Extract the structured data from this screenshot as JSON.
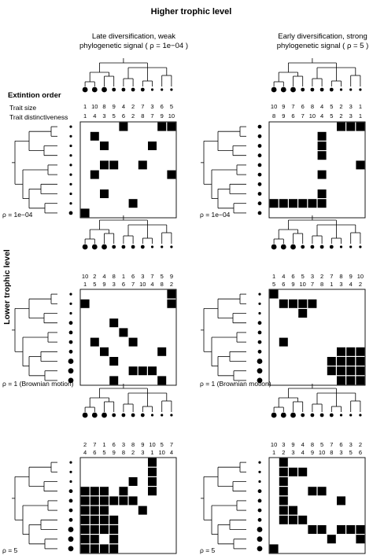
{
  "title": "Higher trophic level",
  "y_title": "Lower trophic level",
  "extinction_label": "Extintion order",
  "trait_size_label": "Trait size",
  "trait_distinct_label": "Trait distinctiveness",
  "columns": [
    {
      "line1": "Late diversification, weak",
      "line2": "phylogenetic signal ( ρ = 1e−04 )"
    },
    {
      "line1": "Early diversification, strong",
      "line2": "phylogenetic signal ( ρ = 5 )"
    }
  ],
  "rows": [
    {
      "rho_left": "ρ = 1e−04",
      "rho_right": "ρ = 1e−04"
    },
    {
      "rho_left": "ρ = 1 (Brownian motion)",
      "rho_right": "ρ = 1 (Brownian motion)"
    },
    {
      "rho_left": "ρ = 5",
      "rho_right": "ρ = 5"
    }
  ],
  "panels": [
    {
      "id": "r1c1",
      "size_row": [
        "1",
        "10",
        "8",
        "9",
        "4",
        "2",
        "7",
        "3",
        "6",
        "5"
      ],
      "dist_row": [
        "1",
        "4",
        "3",
        "5",
        "6",
        "2",
        "8",
        "7",
        "9",
        "10"
      ],
      "top_dots": [
        3,
        3,
        3,
        2,
        2,
        2,
        2,
        1,
        1,
        1
      ],
      "left_dots": [
        1,
        1,
        1,
        1,
        1,
        1,
        1,
        1,
        1,
        2
      ],
      "matrix": [
        [
          0,
          0,
          0,
          0,
          1,
          0,
          0,
          0,
          1,
          1
        ],
        [
          0,
          1,
          0,
          0,
          0,
          0,
          0,
          0,
          0,
          0
        ],
        [
          0,
          0,
          1,
          0,
          0,
          0,
          0,
          1,
          0,
          0
        ],
        [
          0,
          0,
          0,
          0,
          0,
          0,
          0,
          0,
          0,
          0
        ],
        [
          0,
          0,
          1,
          1,
          0,
          0,
          1,
          0,
          0,
          0
        ],
        [
          0,
          1,
          0,
          0,
          0,
          0,
          0,
          0,
          0,
          1
        ],
        [
          0,
          0,
          0,
          0,
          0,
          0,
          0,
          0,
          0,
          0
        ],
        [
          0,
          0,
          1,
          0,
          0,
          0,
          0,
          0,
          0,
          0
        ],
        [
          0,
          0,
          0,
          0,
          0,
          1,
          0,
          0,
          0,
          0
        ],
        [
          1,
          0,
          0,
          0,
          0,
          0,
          0,
          0,
          0,
          0
        ]
      ]
    },
    {
      "id": "r1c2",
      "size_row": [
        "10",
        "9",
        "7",
        "6",
        "8",
        "4",
        "5",
        "2",
        "3",
        "1"
      ],
      "dist_row": [
        "8",
        "9",
        "6",
        "7",
        "10",
        "4",
        "5",
        "2",
        "3",
        "1"
      ],
      "top_dots": [
        3,
        3,
        3,
        2,
        2,
        2,
        2,
        1,
        1,
        1
      ],
      "left_dots": [
        2,
        2,
        2,
        2,
        2,
        2,
        2,
        2,
        2,
        2
      ],
      "matrix": [
        [
          0,
          0,
          0,
          0,
          0,
          0,
          0,
          1,
          1,
          1
        ],
        [
          0,
          0,
          0,
          0,
          0,
          1,
          0,
          0,
          0,
          0
        ],
        [
          0,
          0,
          0,
          0,
          0,
          1,
          0,
          0,
          0,
          0
        ],
        [
          0,
          0,
          0,
          0,
          0,
          1,
          0,
          0,
          0,
          0
        ],
        [
          0,
          0,
          0,
          0,
          0,
          0,
          0,
          0,
          0,
          1
        ],
        [
          0,
          0,
          0,
          0,
          0,
          1,
          0,
          0,
          0,
          0
        ],
        [
          0,
          0,
          0,
          0,
          0,
          0,
          0,
          0,
          0,
          0
        ],
        [
          0,
          0,
          0,
          0,
          0,
          1,
          0,
          0,
          0,
          0
        ],
        [
          1,
          1,
          1,
          1,
          1,
          1,
          0,
          0,
          0,
          0
        ],
        [
          0,
          0,
          0,
          0,
          0,
          0,
          0,
          0,
          0,
          0
        ]
      ]
    },
    {
      "id": "r2c1",
      "size_row": [
        "10",
        "2",
        "4",
        "8",
        "1",
        "6",
        "3",
        "7",
        "5",
        "9"
      ],
      "dist_row": [
        "1",
        "5",
        "9",
        "3",
        "6",
        "7",
        "10",
        "4",
        "8",
        "2"
      ],
      "top_dots": [
        3,
        3,
        3,
        2,
        2,
        2,
        2,
        1,
        1,
        1
      ],
      "left_dots": [
        1,
        1,
        1,
        2,
        2,
        2,
        2,
        3,
        3,
        3
      ],
      "matrix": [
        [
          0,
          0,
          0,
          0,
          0,
          0,
          0,
          0,
          0,
          1
        ],
        [
          1,
          0,
          0,
          0,
          0,
          0,
          0,
          0,
          0,
          1
        ],
        [
          0,
          0,
          0,
          0,
          0,
          0,
          0,
          0,
          0,
          0
        ],
        [
          0,
          0,
          0,
          1,
          0,
          0,
          0,
          0,
          0,
          0
        ],
        [
          0,
          0,
          0,
          0,
          1,
          0,
          0,
          0,
          0,
          0
        ],
        [
          0,
          1,
          0,
          0,
          0,
          1,
          0,
          0,
          0,
          0
        ],
        [
          0,
          0,
          1,
          0,
          0,
          0,
          0,
          0,
          1,
          0
        ],
        [
          0,
          0,
          0,
          1,
          0,
          0,
          0,
          0,
          0,
          0
        ],
        [
          0,
          0,
          0,
          0,
          0,
          1,
          1,
          1,
          0,
          0
        ],
        [
          0,
          0,
          0,
          1,
          0,
          0,
          0,
          0,
          1,
          0
        ]
      ]
    },
    {
      "id": "r2c2",
      "size_row": [
        "1",
        "4",
        "6",
        "5",
        "3",
        "2",
        "7",
        "8",
        "9",
        "10"
      ],
      "dist_row": [
        "5",
        "6",
        "9",
        "10",
        "7",
        "8",
        "1",
        "3",
        "4",
        "2"
      ],
      "top_dots": [
        3,
        3,
        3,
        2,
        2,
        2,
        2,
        1,
        1,
        1
      ],
      "left_dots": [
        1,
        1,
        1,
        2,
        2,
        2,
        2,
        3,
        3,
        3
      ],
      "matrix": [
        [
          1,
          0,
          0,
          0,
          0,
          0,
          0,
          0,
          0,
          0
        ],
        [
          0,
          1,
          1,
          1,
          1,
          0,
          0,
          0,
          0,
          0
        ],
        [
          0,
          0,
          0,
          1,
          0,
          0,
          0,
          0,
          0,
          0
        ],
        [
          0,
          0,
          0,
          0,
          0,
          0,
          0,
          0,
          0,
          0
        ],
        [
          0,
          0,
          0,
          0,
          0,
          0,
          0,
          0,
          0,
          0
        ],
        [
          0,
          1,
          0,
          0,
          0,
          0,
          0,
          0,
          0,
          0
        ],
        [
          0,
          0,
          0,
          0,
          0,
          0,
          0,
          1,
          1,
          1
        ],
        [
          0,
          0,
          0,
          0,
          0,
          0,
          1,
          1,
          1,
          1
        ],
        [
          0,
          0,
          0,
          0,
          0,
          0,
          1,
          1,
          1,
          1
        ],
        [
          0,
          0,
          0,
          0,
          0,
          0,
          0,
          1,
          1,
          1
        ]
      ]
    },
    {
      "id": "r3c1",
      "size_row": [
        "2",
        "7",
        "1",
        "6",
        "3",
        "8",
        "9",
        "10",
        "5",
        "7"
      ],
      "dist_row": [
        "4",
        "6",
        "5",
        "9",
        "8",
        "2",
        "3",
        "1",
        "10",
        "4"
      ],
      "top_dots": [
        3,
        3,
        3,
        2,
        2,
        2,
        2,
        1,
        1,
        1
      ],
      "left_dots": [
        1,
        1,
        1,
        2,
        2,
        2,
        2,
        3,
        3,
        3
      ],
      "matrix": [
        [
          0,
          0,
          0,
          0,
          0,
          0,
          0,
          1,
          0,
          0
        ],
        [
          0,
          0,
          0,
          0,
          0,
          0,
          0,
          1,
          0,
          0
        ],
        [
          0,
          0,
          0,
          0,
          0,
          1,
          0,
          1,
          0,
          0
        ],
        [
          1,
          1,
          1,
          0,
          1,
          0,
          0,
          1,
          0,
          0
        ],
        [
          1,
          1,
          1,
          1,
          1,
          1,
          0,
          0,
          0,
          0
        ],
        [
          1,
          1,
          1,
          0,
          0,
          0,
          1,
          0,
          0,
          0
        ],
        [
          1,
          1,
          1,
          1,
          0,
          0,
          0,
          0,
          0,
          0
        ],
        [
          1,
          1,
          1,
          1,
          0,
          0,
          0,
          0,
          0,
          0
        ],
        [
          1,
          1,
          0,
          1,
          0,
          0,
          0,
          0,
          0,
          0
        ],
        [
          1,
          1,
          1,
          1,
          0,
          0,
          0,
          0,
          0,
          0
        ]
      ]
    },
    {
      "id": "r3c2",
      "size_row": [
        "10",
        "3",
        "9",
        "4",
        "8",
        "5",
        "7",
        "6",
        "3",
        "2"
      ],
      "dist_row": [
        "1",
        "2",
        "3",
        "4",
        "9",
        "10",
        "8",
        "3",
        "5",
        "6"
      ],
      "top_dots": [
        3,
        3,
        3,
        2,
        2,
        2,
        2,
        1,
        1,
        1
      ],
      "left_dots": [
        1,
        1,
        1,
        2,
        2,
        2,
        2,
        3,
        3,
        3
      ],
      "matrix": [
        [
          0,
          1,
          0,
          0,
          0,
          0,
          0,
          0,
          0,
          0
        ],
        [
          0,
          1,
          1,
          1,
          0,
          0,
          0,
          0,
          0,
          0
        ],
        [
          0,
          1,
          0,
          0,
          0,
          0,
          0,
          0,
          0,
          0
        ],
        [
          0,
          1,
          0,
          0,
          1,
          1,
          0,
          0,
          0,
          0
        ],
        [
          0,
          1,
          0,
          0,
          0,
          0,
          0,
          1,
          0,
          0
        ],
        [
          0,
          1,
          1,
          0,
          0,
          0,
          0,
          0,
          0,
          0
        ],
        [
          0,
          1,
          1,
          1,
          0,
          0,
          0,
          0,
          0,
          0
        ],
        [
          0,
          0,
          0,
          0,
          1,
          1,
          0,
          1,
          1,
          1
        ],
        [
          0,
          0,
          0,
          0,
          0,
          0,
          1,
          0,
          0,
          1
        ],
        [
          1,
          0,
          0,
          0,
          0,
          0,
          0,
          0,
          0,
          0
        ]
      ]
    }
  ]
}
